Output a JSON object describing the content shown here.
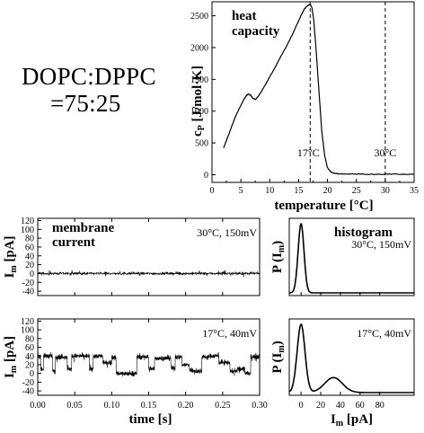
{
  "composition": {
    "line1": "DOPC:DPPC",
    "line2": "=75:25"
  },
  "chart_data": [
    {
      "id": "heat",
      "type": "line",
      "annotation": [
        "heat",
        "capacity"
      ],
      "xlabel": "temperature [°C]",
      "ylabel": "cP [J/mol·K]",
      "xlim": [
        0,
        35
      ],
      "ylim": [
        -120,
        2720
      ],
      "xticks": [
        0,
        5,
        10,
        15,
        20,
        25,
        30,
        35
      ],
      "yticks": [
        0,
        500,
        1000,
        1500,
        2000,
        2500
      ],
      "marker_lines": [
        {
          "x": 17,
          "label": "17°C"
        },
        {
          "x": 30,
          "label": "30°C"
        }
      ],
      "x": [
        2,
        2.5,
        3,
        3.5,
        4,
        4.5,
        5,
        5.5,
        6,
        6.3,
        6.7,
        7,
        7.5,
        8,
        8.5,
        9,
        9.5,
        10,
        11,
        12,
        13,
        14,
        15,
        15.5,
        16,
        16.5,
        17,
        17.3,
        17.6,
        18,
        18.5,
        19,
        19.5,
        20,
        20.5,
        21,
        22,
        23,
        25,
        28,
        30,
        32,
        35
      ],
      "values": [
        420,
        540,
        660,
        780,
        900,
        1000,
        1090,
        1180,
        1250,
        1270,
        1250,
        1210,
        1185,
        1230,
        1300,
        1380,
        1460,
        1540,
        1700,
        1870,
        2040,
        2220,
        2420,
        2520,
        2610,
        2660,
        2680,
        2630,
        2450,
        2000,
        1350,
        700,
        300,
        110,
        50,
        25,
        15,
        12,
        10,
        8,
        8,
        8,
        8
      ]
    },
    {
      "id": "current30",
      "type": "line",
      "annotation": [
        "membrane",
        "current"
      ],
      "note": "30°C, 150mV",
      "ylabel": "Im [pA]",
      "xlim": [
        0,
        0.3
      ],
      "ylim": [
        -50,
        125
      ],
      "yticks": [
        -40,
        -20,
        0,
        20,
        40,
        60,
        80,
        100,
        120
      ],
      "trace": {
        "mean": 0,
        "noise": 3,
        "spike": 7,
        "points": 900
      }
    },
    {
      "id": "current17",
      "type": "line",
      "note": "17°C,  40mV",
      "xlabel": "time [s]",
      "ylabel": "Im [pA]",
      "xlim": [
        0,
        0.3
      ],
      "ylim": [
        -50,
        125
      ],
      "xticks": [
        0.0,
        0.05,
        0.1,
        0.15,
        0.2,
        0.25,
        0.3
      ],
      "yticks": [
        -40,
        -20,
        0,
        20,
        40,
        60,
        80,
        100,
        120
      ],
      "levels": [
        0,
        35
      ],
      "segments": [
        [
          0,
          0.004,
          40
        ],
        [
          0.004,
          0.008,
          10
        ],
        [
          0.008,
          0.02,
          40
        ],
        [
          0.02,
          0.024,
          5
        ],
        [
          0.024,
          0.04,
          38
        ],
        [
          0.04,
          0.046,
          10
        ],
        [
          0.046,
          0.07,
          40
        ],
        [
          0.07,
          0.075,
          10
        ],
        [
          0.075,
          0.088,
          40
        ],
        [
          0.088,
          0.1,
          25
        ],
        [
          0.1,
          0.106,
          38
        ],
        [
          0.106,
          0.128,
          0
        ],
        [
          0.128,
          0.134,
          0
        ],
        [
          0.134,
          0.15,
          38
        ],
        [
          0.15,
          0.158,
          10
        ],
        [
          0.158,
          0.18,
          35
        ],
        [
          0.18,
          0.186,
          12
        ],
        [
          0.186,
          0.195,
          38
        ],
        [
          0.195,
          0.205,
          20
        ],
        [
          0.205,
          0.21,
          8
        ],
        [
          0.21,
          0.222,
          5
        ],
        [
          0.222,
          0.232,
          38
        ],
        [
          0.232,
          0.245,
          40
        ],
        [
          0.245,
          0.26,
          25
        ],
        [
          0.26,
          0.27,
          5
        ],
        [
          0.27,
          0.28,
          10
        ],
        [
          0.28,
          0.288,
          0
        ],
        [
          0.288,
          0.3,
          38
        ]
      ],
      "trace": {
        "noise": 5,
        "spike": 10,
        "points": 1500
      }
    },
    {
      "id": "hist30",
      "type": "line",
      "annotation": [
        "histogram"
      ],
      "note": "30°C, 150mV",
      "ylabel": "P (Im)",
      "xlim": [
        -12,
        115
      ],
      "peaks": [
        {
          "center": 0,
          "width": 3,
          "height": 1
        }
      ]
    },
    {
      "id": "hist17",
      "type": "line",
      "note": "17°C,  40mV",
      "xlabel": "Im [pA]",
      "ylabel": "P (Im)",
      "xlim": [
        -12,
        115
      ],
      "xticks": [
        0,
        20,
        40,
        60,
        80
      ],
      "peaks": [
        {
          "center": 0,
          "width": 4,
          "height": 1
        },
        {
          "center": 33,
          "width": 9,
          "height": 0.22
        }
      ]
    }
  ]
}
